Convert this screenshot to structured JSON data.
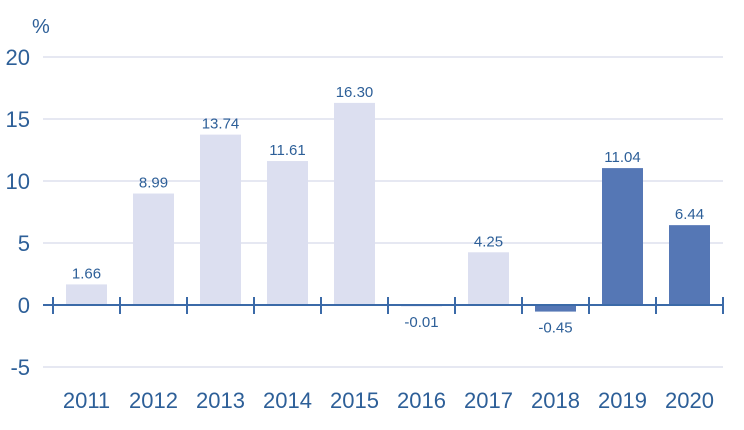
{
  "chart_data": {
    "type": "bar",
    "title": "",
    "xlabel": "",
    "ylabel": "%",
    "ylim": [
      -5,
      20
    ],
    "yticks": [
      20,
      15,
      10,
      5,
      0,
      -5
    ],
    "grid": true,
    "categories": [
      "2011",
      "2012",
      "2013",
      "2014",
      "2015",
      "2016",
      "2017",
      "2018",
      "2019",
      "2020"
    ],
    "values": [
      1.66,
      8.99,
      13.74,
      11.61,
      16.3,
      -0.01,
      4.25,
      -0.45,
      11.04,
      6.44
    ],
    "labels": [
      "1.66",
      "8.99",
      "13.74",
      "11.61",
      "16.30",
      "-0.01",
      "4.25",
      "-0.45",
      "11.04",
      "6.44"
    ],
    "highlight": [
      false,
      false,
      false,
      false,
      false,
      false,
      false,
      true,
      true,
      true
    ],
    "colors": {
      "base": "#dcdff0",
      "highlight": "#5577b5",
      "text": "#2d5f98",
      "grid": "#e6e8f2",
      "axis": "#3b6aa8"
    }
  }
}
